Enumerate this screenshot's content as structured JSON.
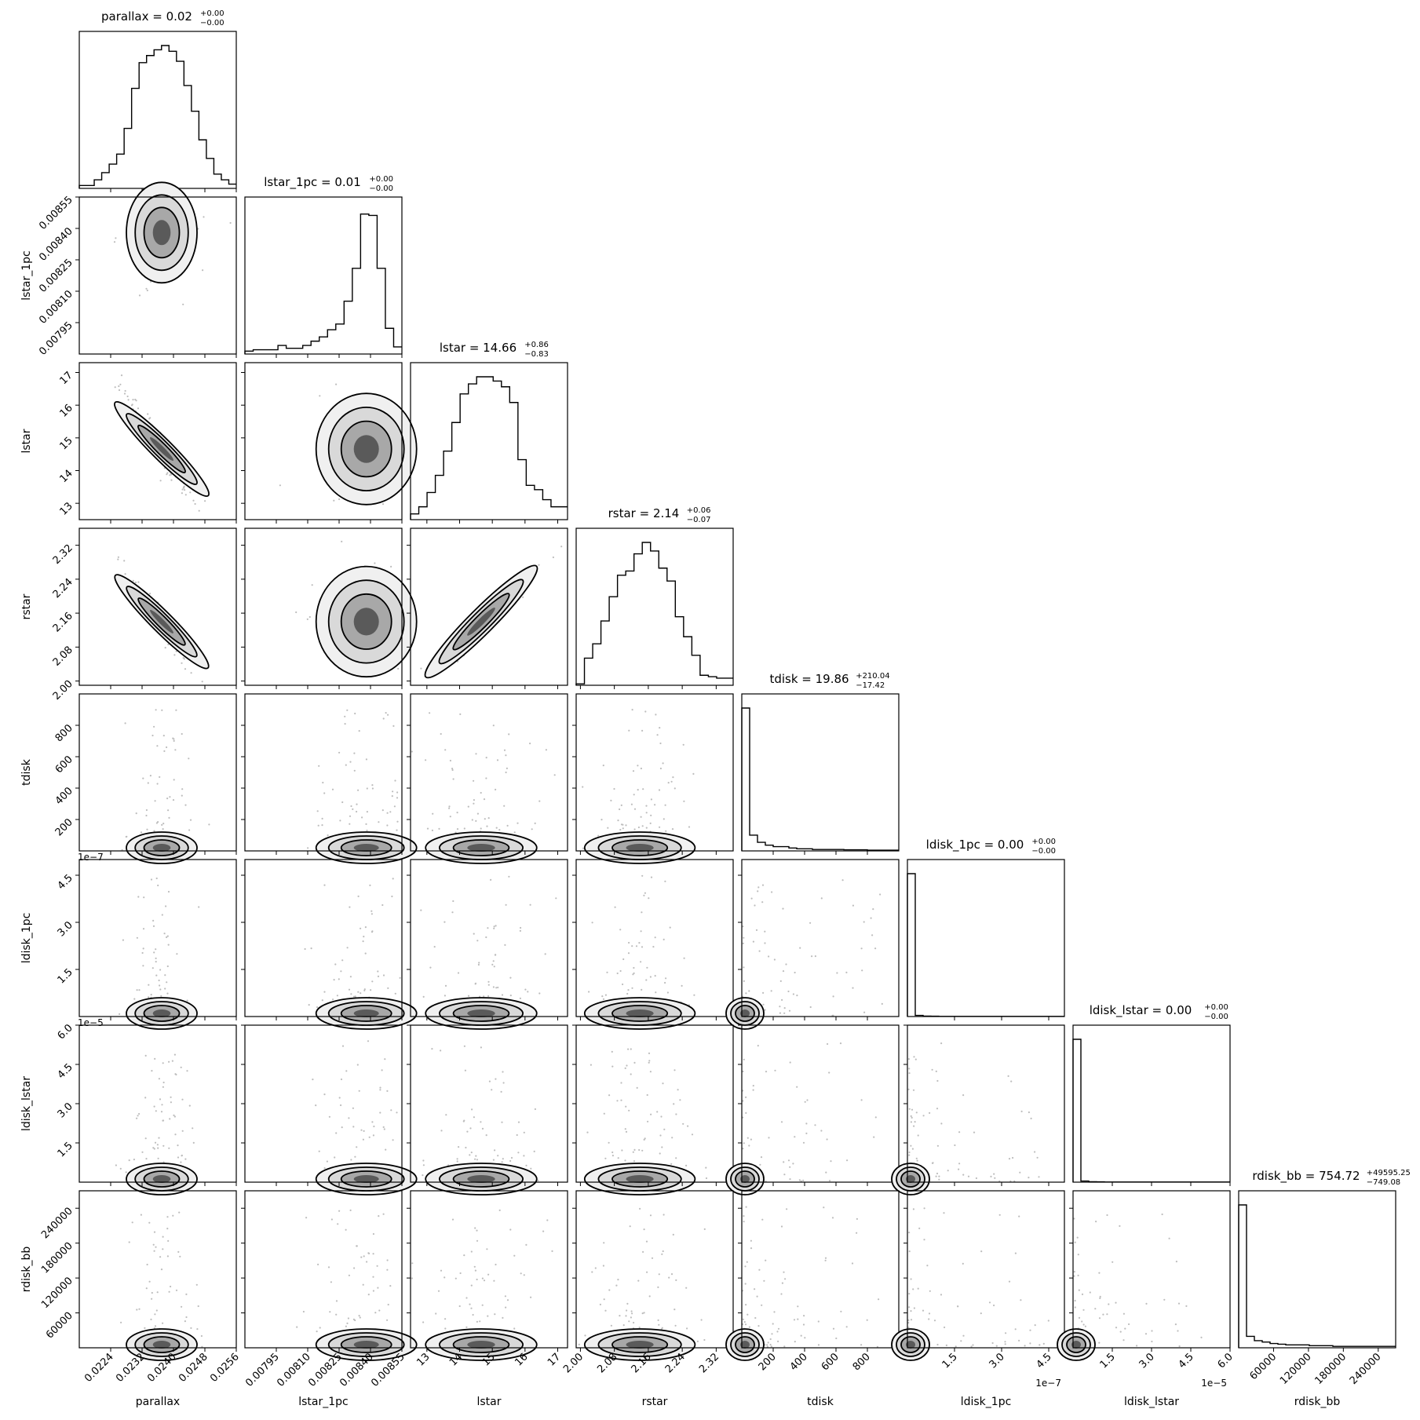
{
  "chart_data": {
    "type": "corner",
    "parameters": [
      {
        "name": "parallax",
        "title_main": "parallax = 0.02",
        "title_up": "+0.00",
        "title_down": "−0.00",
        "range": [
          0.0216,
          0.0256
        ],
        "ticks": [
          0.0224,
          0.0232,
          0.024,
          0.0248,
          0.0256
        ],
        "tick_labels": [
          "0.0224",
          "0.0232",
          "0.0240",
          "0.0248",
          "0.0256"
        ],
        "offset": "",
        "median": 0.0237,
        "sigma": 0.00045,
        "skew": 0
      },
      {
        "name": "lstar_1pc",
        "title_main": "lstar_1pc = 0.01",
        "title_up": "+0.00",
        "title_down": "−0.00",
        "range": [
          0.0078,
          0.00855
        ],
        "ticks": [
          0.00795,
          0.0081,
          0.00825,
          0.0084,
          0.00855
        ],
        "tick_labels": [
          "0.00795",
          "0.00810",
          "0.00825",
          "0.00840",
          "0.00855"
        ],
        "offset": "",
        "median": 0.00838,
        "sigma": 0.00012,
        "skew": -1
      },
      {
        "name": "lstar",
        "title_main": "lstar = 14.66",
        "title_up": "+0.86",
        "title_down": "−0.83",
        "range": [
          12.5,
          17.3
        ],
        "ticks": [
          13,
          14,
          15,
          16,
          17
        ],
        "tick_labels": [
          "13",
          "14",
          "15",
          "16",
          "17"
        ],
        "offset": "",
        "median": 14.66,
        "sigma": 0.85,
        "skew": 0
      },
      {
        "name": "rstar",
        "title_main": "rstar = 2.14",
        "title_up": "+0.06",
        "title_down": "−0.07",
        "range": [
          1.99,
          2.36
        ],
        "ticks": [
          2.0,
          2.08,
          2.16,
          2.24,
          2.32
        ],
        "tick_labels": [
          "2.00",
          "2.08",
          "2.16",
          "2.24",
          "2.32"
        ],
        "offset": "",
        "median": 2.14,
        "sigma": 0.065,
        "skew": 0
      },
      {
        "name": "tdisk",
        "title_main": "tdisk = 19.86",
        "title_up": "+210.04",
        "title_down": "−17.42",
        "range": [
          0,
          1000
        ],
        "ticks": [
          200,
          400,
          600,
          800
        ],
        "tick_labels": [
          "200",
          "400",
          "600",
          "800"
        ],
        "offset": "",
        "median": 19.86,
        "sigma": 60,
        "skew": 1
      },
      {
        "name": "ldisk_1pc",
        "title_main": "ldisk_1pc = 0.00",
        "title_up": "+0.00",
        "title_down": "−0.00",
        "range": [
          0,
          5e-07
        ],
        "ticks": [
          1.5e-07,
          3e-07,
          4.5e-07
        ],
        "tick_labels": [
          "1.5",
          "3.0",
          "4.5"
        ],
        "offset": "1e−7",
        "median": 1e-09,
        "sigma": 5e-09,
        "skew": 1
      },
      {
        "name": "ldisk_lstar",
        "title_main": "ldisk_lstar = 0.00",
        "title_up": "+0.00",
        "title_down": "−0.00",
        "range": [
          0,
          6e-05
        ],
        "ticks": [
          1.5e-05,
          3e-05,
          4.5e-05,
          6e-05
        ],
        "tick_labels": [
          "1.5",
          "3.0",
          "4.5",
          "6.0"
        ],
        "offset": "1e−5",
        "median": 1e-07,
        "sigma": 6e-07,
        "skew": 1
      },
      {
        "name": "rdisk_bb",
        "title_main": "rdisk_bb = 754.72",
        "title_up": "+49595.25",
        "title_down": "−749.08",
        "range": [
          0,
          270000
        ],
        "ticks": [
          60000,
          120000,
          180000,
          240000
        ],
        "tick_labels": [
          "60000",
          "120000",
          "180000",
          "240000"
        ],
        "offset": "",
        "median": 754.72,
        "sigma": 20000,
        "skew": 1
      }
    ],
    "histograms": [
      [
        0.02,
        0.02,
        0.06,
        0.11,
        0.17,
        0.24,
        0.42,
        0.7,
        0.88,
        0.93,
        0.97,
        1.0,
        0.96,
        0.89,
        0.72,
        0.54,
        0.34,
        0.21,
        0.1,
        0.06,
        0.03
      ],
      [
        0.02,
        0.03,
        0.03,
        0.03,
        0.06,
        0.04,
        0.04,
        0.06,
        0.09,
        0.12,
        0.17,
        0.21,
        0.37,
        0.6,
        0.98,
        0.97,
        0.6,
        0.18,
        0.05
      ],
      [
        0.04,
        0.09,
        0.19,
        0.31,
        0.48,
        0.68,
        0.88,
        0.95,
        1.0,
        1.0,
        0.97,
        0.93,
        0.82,
        0.42,
        0.24,
        0.21,
        0.14,
        0.09,
        0.09
      ],
      [
        0.01,
        0.19,
        0.29,
        0.45,
        0.62,
        0.77,
        0.8,
        0.92,
        1.0,
        0.94,
        0.82,
        0.73,
        0.48,
        0.34,
        0.21,
        0.07,
        0.06,
        0.05,
        0.05
      ],
      [
        1.0,
        0.11,
        0.06,
        0.04,
        0.03,
        0.03,
        0.02,
        0.015,
        0.015,
        0.01,
        0.01,
        0.01,
        0.01,
        0.008,
        0.008,
        0.008,
        0.005,
        0.005,
        0.005,
        0.005
      ],
      [
        1.0,
        0.008,
        0.003,
        0.002,
        0.001,
        0.001,
        0.001,
        0.001,
        0.001,
        0.001,
        0.001,
        0.001,
        0.001,
        0.001,
        0.001,
        0.001,
        0.001,
        0.001,
        0.001,
        0.001
      ],
      [
        1.0,
        0.008,
        0.003,
        0.002,
        0.001,
        0.001,
        0.001,
        0.001,
        0.001,
        0.001,
        0.001,
        0.001,
        0.001,
        0.001,
        0.001,
        0.001,
        0.001,
        0.001,
        0.001,
        0.001
      ],
      [
        1.0,
        0.08,
        0.05,
        0.04,
        0.03,
        0.025,
        0.02,
        0.02,
        0.02,
        0.015,
        0.015,
        0.015,
        0.01,
        0.01,
        0.01,
        0.01,
        0.01,
        0.01,
        0.01,
        0.01
      ]
    ],
    "correlations": [
      [
        0,
        2,
        -0.96
      ],
      [
        0,
        3,
        -0.95
      ],
      [
        2,
        3,
        0.96
      ]
    ],
    "grid": false,
    "legend": "none"
  }
}
